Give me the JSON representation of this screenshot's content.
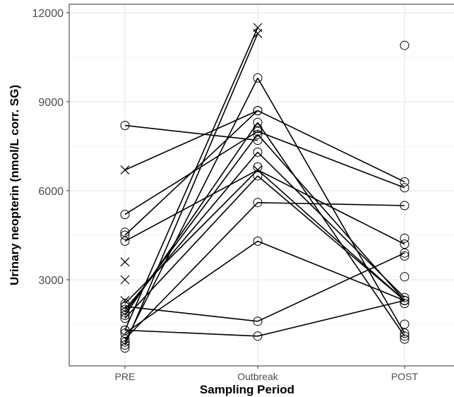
{
  "chart_data": {
    "type": "line",
    "xlabel": "Sampling Period",
    "ylabel": "Urinary neopterin (nmol/L corr. SG)",
    "categories": [
      "PRE",
      "Outbreak",
      "POST"
    ],
    "ylim": [
      0,
      12000
    ],
    "yticks": [
      3000,
      6000,
      9000,
      12000
    ],
    "y_tick_labels": [
      "3000",
      "6000",
      "9000",
      "12000"
    ],
    "grid": true,
    "legend": "none",
    "series": [
      {
        "values": [
          8200,
          7700,
          null
        ]
      },
      {
        "values": [
          6700,
          8700,
          null
        ]
      },
      {
        "values": [
          5200,
          8000,
          6100
        ]
      },
      {
        "values": [
          4500,
          8700,
          6300
        ]
      },
      {
        "values": [
          4300,
          6700,
          2300
        ]
      },
      {
        "values": [
          2200,
          6700,
          4200
        ]
      },
      {
        "values": [
          2000,
          7300,
          2400
        ]
      },
      {
        "values": [
          1900,
          7900,
          2300
        ]
      },
      {
        "values": [
          1800,
          8300,
          1100
        ]
      },
      {
        "values": [
          1700,
          6500,
          2300
        ]
      },
      {
        "values": [
          1300,
          11500,
          null
        ]
      },
      {
        "values": [
          1300,
          1100,
          2300
        ]
      },
      {
        "values": [
          1000,
          5600,
          5500
        ]
      },
      {
        "values": [
          900,
          9800,
          1200
        ]
      },
      {
        "values": [
          800,
          11300,
          null
        ]
      },
      {
        "values": [
          2100,
          1600,
          3900
        ]
      },
      {
        "values": [
          1200,
          4300,
          2300
        ]
      }
    ],
    "extra_points": [
      {
        "period": "PRE",
        "value": 4600,
        "marker": "circle"
      },
      {
        "period": "PRE",
        "value": 3600,
        "marker": "x"
      },
      {
        "period": "PRE",
        "value": 3000,
        "marker": "x"
      },
      {
        "period": "PRE",
        "value": 2300,
        "marker": "x"
      },
      {
        "period": "PRE",
        "value": 700,
        "marker": "circle"
      },
      {
        "period": "Outbreak",
        "value": 8100,
        "marker": "circle"
      },
      {
        "period": "Outbreak",
        "value": 6800,
        "marker": "circle"
      },
      {
        "period": "POST",
        "value": 10900,
        "marker": "circle"
      },
      {
        "period": "POST",
        "value": 4400,
        "marker": "circle"
      },
      {
        "period": "POST",
        "value": 3800,
        "marker": "circle"
      },
      {
        "period": "POST",
        "value": 3100,
        "marker": "circle"
      },
      {
        "period": "POST",
        "value": 1500,
        "marker": "circle"
      },
      {
        "period": "POST",
        "value": 2200,
        "marker": "circle"
      },
      {
        "period": "POST",
        "value": 1000,
        "marker": "circle"
      }
    ],
    "x_markers": [
      {
        "period": "PRE",
        "value": 6700
      },
      {
        "period": "Outbreak",
        "value": 11500
      },
      {
        "period": "Outbreak",
        "value": 11300
      },
      {
        "period": "Outbreak",
        "value": 6700
      }
    ]
  },
  "style": {
    "line_color": "#000000",
    "marker_stroke": "#000000",
    "panel_border": "#333333"
  }
}
